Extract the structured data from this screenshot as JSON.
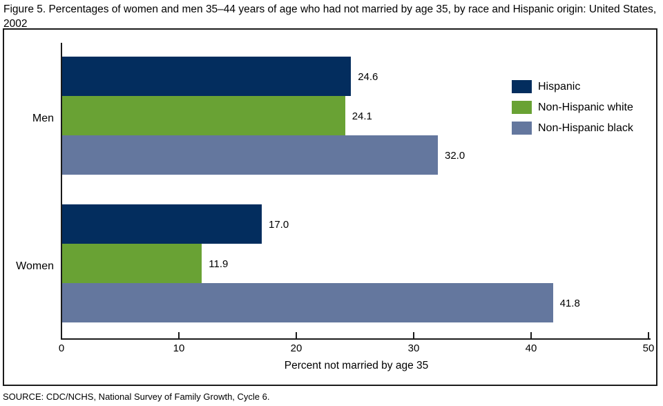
{
  "header": {
    "title": "Figure 5. Percentages of women and men 35–44 years of age who had not married by age 35, by race and Hispanic origin: United States, 2002"
  },
  "chart_data": {
    "type": "bar",
    "orientation": "horizontal",
    "title": "Figure 5. Percentages of women and men 35–44 years of age who had not married by age 35, by race and Hispanic origin: United States, 2002",
    "categories": [
      "Men",
      "Women"
    ],
    "series": [
      {
        "name": "Hispanic",
        "color": "#032d5e",
        "values": [
          24.6,
          17.0
        ]
      },
      {
        "name": "Non-Hispanic white",
        "color": "#69a234",
        "values": [
          24.1,
          11.9
        ]
      },
      {
        "name": "Non-Hispanic black",
        "color": "#64779e",
        "values": [
          32.0,
          41.8
        ]
      }
    ],
    "value_labels": [
      "24.6",
      "24.1",
      "32.0",
      "17.0",
      "11.9",
      "41.8"
    ],
    "xlabel": "Percent not married by age 35",
    "xlim": [
      0,
      50
    ],
    "xticks": [
      0,
      10,
      20,
      30,
      40,
      50
    ],
    "grid": false,
    "legend_position": "top-right",
    "axis_color": "#1a1a1a"
  },
  "footer": {
    "source": "SOURCE: CDC/NCHS, National Survey of Family Growth, Cycle 6."
  }
}
